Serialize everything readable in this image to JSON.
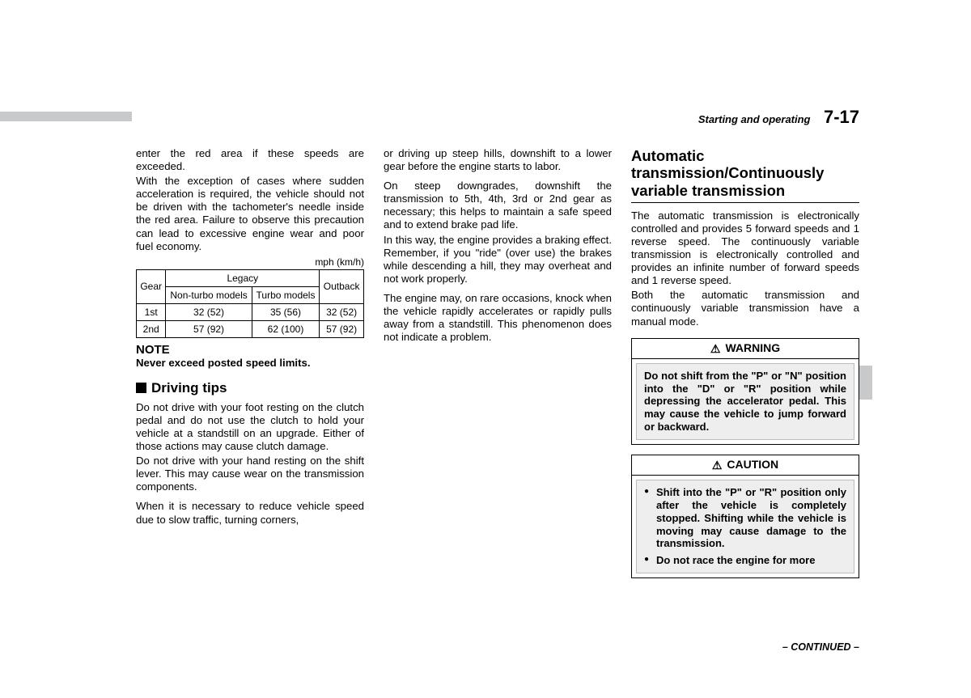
{
  "header": {
    "section": "Starting and operating",
    "pagenum": "7-17"
  },
  "col1": {
    "p1": "enter the red area if these speeds are exceeded.",
    "p2": "With the exception of cases where sudden acceleration is required, the vehicle should not be driven with the tachometer's needle inside the red area. Failure to observe this precaution can lead to excessive engine wear and poor fuel economy.",
    "unit": "mph (km/h)",
    "table": {
      "col_gear": "Gear",
      "col_legacy": "Legacy",
      "col_nonturbo": "Non-turbo models",
      "col_turbo": "Turbo models",
      "col_outback": "Outback",
      "rows": [
        {
          "gear": "1st",
          "nonturbo": "32 (52)",
          "turbo": "35 (56)",
          "outback": "32 (52)"
        },
        {
          "gear": "2nd",
          "nonturbo": "57 (92)",
          "turbo": "62 (100)",
          "outback": "57 (92)"
        }
      ]
    },
    "note_head": "NOTE",
    "note_body": "Never exceed posted speed limits.",
    "tips_head": "Driving tips",
    "tips_p1": "Do not drive with your foot resting on the clutch pedal and do not use the clutch to hold your vehicle at a standstill on an upgrade. Either of those actions may cause clutch damage.",
    "tips_p2": "Do not drive with your hand resting on the shift lever. This may cause wear on the transmission components.",
    "tips_p3": "When it is necessary to reduce vehicle speed due to slow traffic, turning corners,"
  },
  "col2": {
    "p1": "or driving up steep hills, downshift to a lower gear before the engine starts to labor.",
    "p2": "On steep downgrades, downshift the transmission to 5th, 4th, 3rd or 2nd gear as necessary; this helps to maintain a safe speed and to extend brake pad life.",
    "p3": "In this way, the engine provides a braking effect. Remember, if you \"ride\" (over use) the brakes while descending a hill, they may overheat and not work properly.",
    "p4": "The engine may, on rare occasions, knock when the vehicle rapidly accelerates or rapidly pulls away from a standstill. This phenomenon does not indicate a problem."
  },
  "col3": {
    "head": "Automatic transmission/Continuously variable transmission",
    "p1": "The automatic transmission is electronically controlled and provides 5 forward speeds and 1 reverse speed. The continuously variable transmission is electronically controlled and provides an infinite number of forward speeds and 1 reverse speed.",
    "p2": "Both the automatic transmission and continuously variable transmission have a manual mode.",
    "warning": {
      "title": "WARNING",
      "body": "Do not shift from the \"P\" or \"N\" position into the \"D\" or \"R\" position while depressing the accelerator pedal. This may cause the vehicle to jump forward or backward."
    },
    "caution": {
      "title": "CAUTION",
      "items": [
        "Shift into the \"P\" or \"R\" position only after the vehicle is completely stopped. Shifting while the vehicle is moving may cause damage to the transmission.",
        "Do not race the engine for more"
      ]
    }
  },
  "continued": "– CONTINUED –"
}
